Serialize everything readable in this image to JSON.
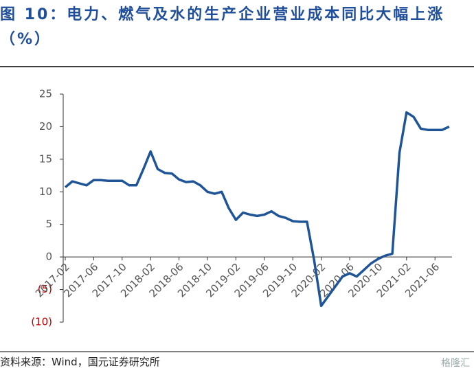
{
  "chart_data": {
    "type": "line",
    "title": "图 10：电力、燃气及水的生产企业营业成本同比大幅上涨（%）",
    "source": "资料来源：Wind，国元证券研究所",
    "watermark": "格隆汇",
    "categories": [
      "2017-02",
      null,
      null,
      null,
      "2017-06",
      null,
      null,
      null,
      "2017-10",
      null,
      null,
      null,
      "2018-02",
      null,
      null,
      null,
      "2018-06",
      null,
      null,
      null,
      "2018-10",
      null,
      null,
      null,
      "2019-02",
      null,
      null,
      null,
      "2019-06",
      null,
      null,
      null,
      "2019-10",
      null,
      null,
      null,
      "2020-02",
      null,
      null,
      null,
      "2020-06",
      null,
      null,
      null,
      "2020-10",
      null,
      null,
      null,
      "2021-02",
      null,
      null,
      null,
      "2021-06",
      null,
      null
    ],
    "series": [
      {
        "name": "营业成本同比",
        "color": "#1f5597",
        "values": [
          10.7,
          11.6,
          11.3,
          11.0,
          11.8,
          11.8,
          11.7,
          11.7,
          11.7,
          11.0,
          11.0,
          13.5,
          16.2,
          13.5,
          12.9,
          12.8,
          11.9,
          11.5,
          11.6,
          11.0,
          10.0,
          9.7,
          10.0,
          7.5,
          5.7,
          6.8,
          6.5,
          6.3,
          6.5,
          7.0,
          6.3,
          6.0,
          5.5,
          5.4,
          5.4,
          -0.5,
          -7.5,
          -6.0,
          -4.5,
          -3.0,
          -2.5,
          -3.0,
          -2.0,
          -1.0,
          -0.3,
          0.2,
          0.5,
          16.0,
          22.2,
          21.5,
          19.7,
          19.5,
          19.5,
          19.5,
          20.0
        ]
      }
    ],
    "ylim": [
      -10,
      25
    ],
    "yticks": [
      {
        "value": -10,
        "label": "(10)"
      },
      {
        "value": -5,
        "label": "(5)"
      },
      0,
      5,
      10,
      15,
      20,
      25
    ],
    "negative_label_color": "#c00000"
  }
}
